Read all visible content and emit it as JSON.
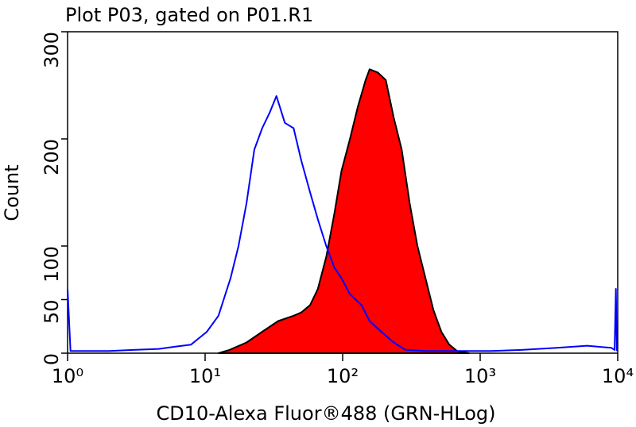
{
  "chart_data": {
    "type": "histogram-overlay",
    "title": "Plot P03, gated on P01.R1",
    "x_label": "CD10-Alexa Fluor®488 (GRN-HLog)",
    "y_label": "Count",
    "xscale": "log",
    "xlim": [
      1,
      10000
    ],
    "xticks": [
      {
        "value": 1,
        "label": "10⁰"
      },
      {
        "value": 10,
        "label": "10¹"
      },
      {
        "value": 100,
        "label": "10²"
      },
      {
        "value": 1000,
        "label": "10³"
      },
      {
        "value": 10000,
        "label": "10⁴"
      }
    ],
    "ylim": [
      0,
      300
    ],
    "yticks": [
      0,
      50,
      100,
      200,
      300
    ],
    "series": [
      {
        "color": "#ff0000",
        "outline": "#000000",
        "filled": true,
        "x": [
          12.5,
          15,
          20,
          26,
          34,
          44,
          50,
          58,
          66,
          76,
          87,
          98,
          113,
          129,
          147,
          157,
          180,
          206,
          235,
          269,
          307,
          350,
          400,
          458,
          522,
          596,
          680,
          829
        ],
        "values": [
          0,
          3,
          10,
          20,
          30,
          35,
          38,
          45,
          60,
          90,
          130,
          170,
          200,
          230,
          255,
          265,
          262,
          255,
          220,
          190,
          140,
          100,
          70,
          40,
          20,
          8,
          2,
          0
        ]
      },
      {
        "color": "#0000ff",
        "filled": false,
        "x": [
          1,
          1.05,
          1.3,
          2,
          3,
          4.6,
          6,
          7.9,
          10.3,
          12.5,
          15.3,
          17.5,
          20,
          22.8,
          26,
          29.6,
          33,
          38,
          44,
          50,
          58,
          66,
          76,
          87,
          98,
          113,
          137,
          157,
          191,
          235,
          287,
          400,
          700,
          1200,
          2000,
          3600,
          6000,
          9000,
          9500,
          9700,
          9850
        ],
        "values": [
          60,
          2,
          2,
          2,
          3,
          4,
          6,
          8,
          20,
          35,
          70,
          100,
          140,
          190,
          210,
          225,
          240,
          215,
          210,
          180,
          150,
          125,
          100,
          80,
          70,
          55,
          45,
          30,
          20,
          10,
          3,
          2,
          2,
          2,
          3,
          5,
          7,
          5,
          3,
          60,
          2
        ]
      }
    ]
  }
}
